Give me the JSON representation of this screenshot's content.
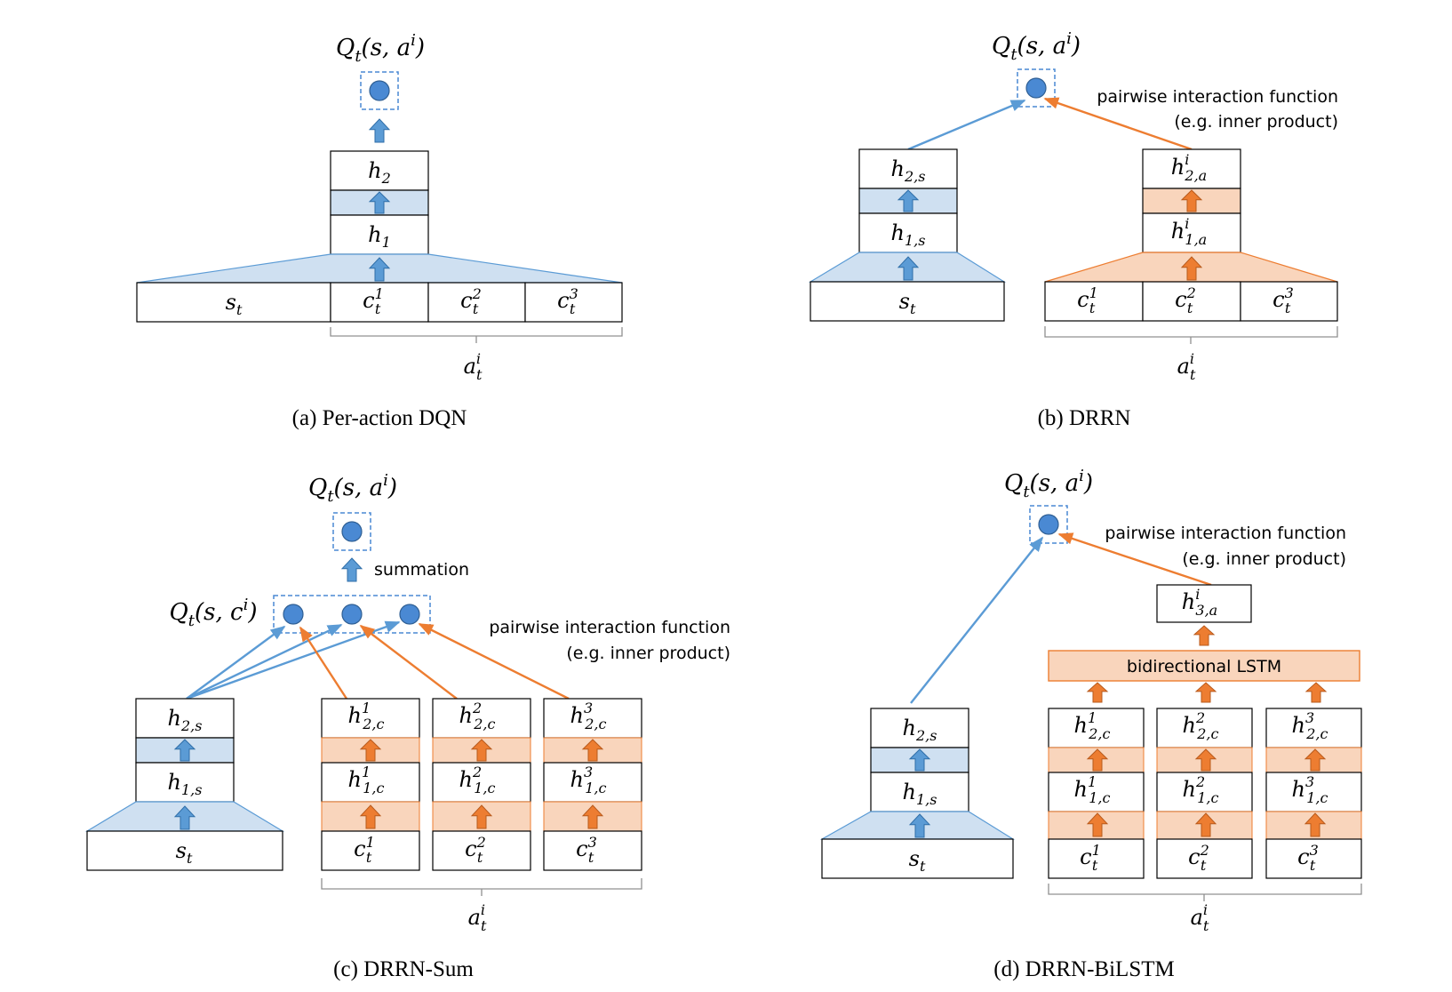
{
  "colors": {
    "blue_fill": "#cfe0f1",
    "blue_dark": "#5b9bd5",
    "blue_node": "#4a89d3",
    "orange_fill": "#f9d5bc",
    "orange_dark": "#ed7d31",
    "stroke": "#000000",
    "brace": "#909090"
  },
  "panels": {
    "a": {
      "caption": "(a)  Per-action DQN",
      "output": {
        "base": "Q",
        "sub": "t",
        "args": "(s, a",
        "sup": "i",
        "close": ")"
      },
      "h2": {
        "base": "h",
        "sub": "2"
      },
      "h1": {
        "base": "h",
        "sub": "1"
      },
      "st": {
        "base": "s",
        "sub": "t"
      },
      "c": [
        {
          "base": "c",
          "sub": "t",
          "sup": "1"
        },
        {
          "base": "c",
          "sub": "t",
          "sup": "2"
        },
        {
          "base": "c",
          "sub": "t",
          "sup": "3"
        }
      ],
      "action": {
        "base": "a",
        "sub": "t",
        "sup": "i"
      }
    },
    "b": {
      "caption": "(b)  DRRN",
      "output": {
        "base": "Q",
        "sub": "t",
        "args": "(s, a",
        "sup": "i",
        "close": ")"
      },
      "interaction_line1": "pairwise interaction function",
      "interaction_line2": "(e.g. inner product)",
      "h2s": {
        "base": "h",
        "sub": "2,s"
      },
      "h1s": {
        "base": "h",
        "sub": "1,s"
      },
      "h2a": {
        "base": "h",
        "sub": "2,a",
        "sup": "i"
      },
      "h1a": {
        "base": "h",
        "sub": "1,a",
        "sup": "i"
      },
      "st": {
        "base": "s",
        "sub": "t"
      },
      "c": [
        {
          "base": "c",
          "sub": "t",
          "sup": "1"
        },
        {
          "base": "c",
          "sub": "t",
          "sup": "2"
        },
        {
          "base": "c",
          "sub": "t",
          "sup": "3"
        }
      ],
      "action": {
        "base": "a",
        "sub": "t",
        "sup": "i"
      }
    },
    "c": {
      "caption": "(c)  DRRN-Sum",
      "output": {
        "base": "Q",
        "sub": "t",
        "args": "(s, a",
        "sup": "i",
        "close": ")"
      },
      "summation": "summation",
      "qc": {
        "base": "Q",
        "sub": "t",
        "args": "(s, c",
        "sup": "i",
        "close": ")"
      },
      "interaction_line1": "pairwise interaction function",
      "interaction_line2": "(e.g. inner product)",
      "h2s": {
        "base": "h",
        "sub": "2,s"
      },
      "h1s": {
        "base": "h",
        "sub": "1,s"
      },
      "st": {
        "base": "s",
        "sub": "t"
      },
      "h2c": [
        {
          "base": "h",
          "sub": "2,c",
          "sup": "1"
        },
        {
          "base": "h",
          "sub": "2,c",
          "sup": "2"
        },
        {
          "base": "h",
          "sub": "2,c",
          "sup": "3"
        }
      ],
      "h1c": [
        {
          "base": "h",
          "sub": "1,c",
          "sup": "1"
        },
        {
          "base": "h",
          "sub": "1,c",
          "sup": "2"
        },
        {
          "base": "h",
          "sub": "1,c",
          "sup": "3"
        }
      ],
      "c": [
        {
          "base": "c",
          "sub": "t",
          "sup": "1"
        },
        {
          "base": "c",
          "sub": "t",
          "sup": "2"
        },
        {
          "base": "c",
          "sub": "t",
          "sup": "3"
        }
      ],
      "action": {
        "base": "a",
        "sub": "t",
        "sup": "i"
      }
    },
    "d": {
      "caption": "(d)  DRRN-BiLSTM",
      "output": {
        "base": "Q",
        "sub": "t",
        "args": "(s, a",
        "sup": "i",
        "close": ")"
      },
      "interaction_line1": "pairwise interaction function",
      "interaction_line2": "(e.g. inner product)",
      "h3a": {
        "base": "h",
        "sub": "3,a",
        "sup": "i"
      },
      "lstm": "bidirectional LSTM",
      "h2s": {
        "base": "h",
        "sub": "2,s"
      },
      "h1s": {
        "base": "h",
        "sub": "1,s"
      },
      "st": {
        "base": "s",
        "sub": "t"
      },
      "h2c": [
        {
          "base": "h",
          "sub": "2,c",
          "sup": "1"
        },
        {
          "base": "h",
          "sub": "2,c",
          "sup": "2"
        },
        {
          "base": "h",
          "sub": "2,c",
          "sup": "3"
        }
      ],
      "h1c": [
        {
          "base": "h",
          "sub": "1,c",
          "sup": "1"
        },
        {
          "base": "h",
          "sub": "1,c",
          "sup": "2"
        },
        {
          "base": "h",
          "sub": "1,c",
          "sup": "3"
        }
      ],
      "c": [
        {
          "base": "c",
          "sub": "t",
          "sup": "1"
        },
        {
          "base": "c",
          "sub": "t",
          "sup": "2"
        },
        {
          "base": "c",
          "sub": "t",
          "sup": "3"
        }
      ],
      "action": {
        "base": "a",
        "sub": "t",
        "sup": "i"
      }
    }
  }
}
